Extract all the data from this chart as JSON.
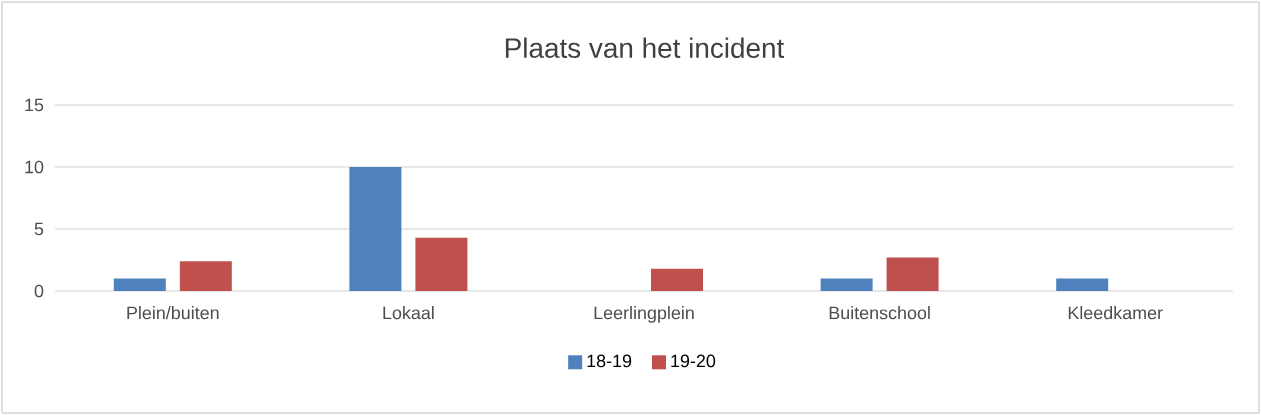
{
  "chart_data": {
    "type": "bar",
    "title": "Plaats van het incident",
    "categories": [
      "Plein/buiten",
      "Lokaal",
      "Leerlingplein",
      "Buitenschool",
      "Kleedkamer"
    ],
    "series": [
      {
        "name": "18-19",
        "color": "#4f81bd",
        "values": [
          1,
          10,
          0,
          1,
          1
        ]
      },
      {
        "name": "19-20",
        "color": "#c0504d",
        "values": [
          2.4,
          4.3,
          1.8,
          2.7,
          0
        ]
      }
    ],
    "ylim": [
      0,
      15
    ],
    "yticks": [
      0,
      5,
      10,
      15
    ],
    "grid": "y",
    "legend": "bottom"
  }
}
